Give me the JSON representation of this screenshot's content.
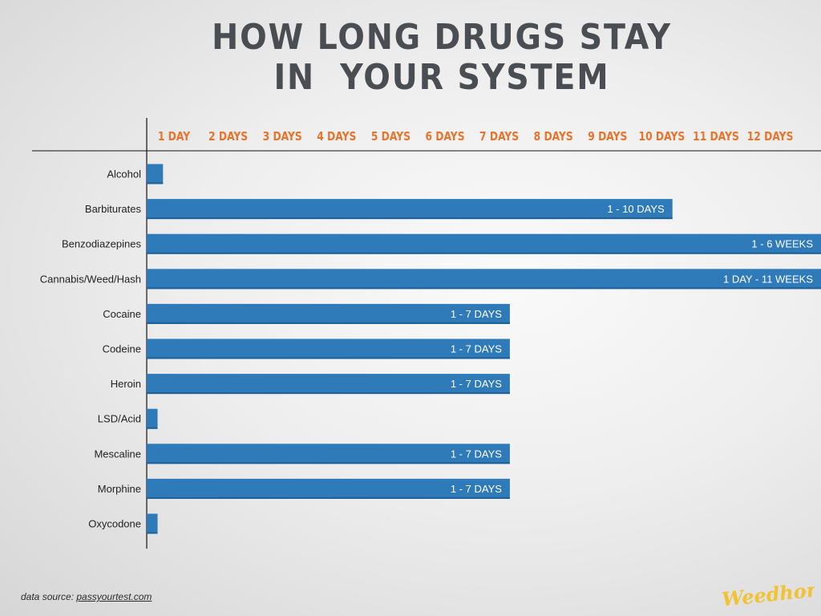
{
  "title": {
    "line1": "HOW LONG DRUGS STAY",
    "line2": "IN  YOUR SYSTEM"
  },
  "colors": {
    "bar": "#2f7ab8",
    "tick_label": "#e8742c",
    "category_label": "#222222",
    "axis": "#111111",
    "title": "#4a4d52",
    "logo": "#f1c232"
  },
  "chart_data": {
    "type": "bar",
    "orientation": "horizontal",
    "x_ticks": [
      "1 DAY",
      "2 DAYS",
      "3 DAYS",
      "4 DAYS",
      "5 DAYS",
      "6 DAYS",
      "7 DAYS",
      "8 DAYS",
      "9 DAYS",
      "10 DAYS",
      "11 DAYS",
      "12 DAYS"
    ],
    "x_axis_position": "top",
    "xlim": [
      0,
      12.5
    ],
    "categories": [
      "Alcohol",
      "Barbiturates",
      "Benzodiazepines",
      "Cannabis/Weed/Hash",
      "Cocaine",
      "Codeine",
      "Heroin",
      "LSD/Acid",
      "Mescaline",
      "Morphine",
      "Oxycodone"
    ],
    "values": [
      0.3,
      9.7,
      12.5,
      12.5,
      6.7,
      6.7,
      6.7,
      0.2,
      6.7,
      6.7,
      0.2
    ],
    "bar_labels": [
      "",
      "1 - 10 DAYS",
      "1 - 6 WEEKS",
      "1 DAY - 11 WEEKS",
      "1 - 7 DAYS",
      "1 - 7 DAYS",
      "1 - 7 DAYS",
      "",
      "1 - 7 DAYS",
      "1 - 7 DAYS",
      ""
    ],
    "grid": false,
    "legend": "none"
  },
  "source": {
    "prefix": "data source: ",
    "link": "passyourtest.com"
  },
  "logo_text": "Weedhorn"
}
